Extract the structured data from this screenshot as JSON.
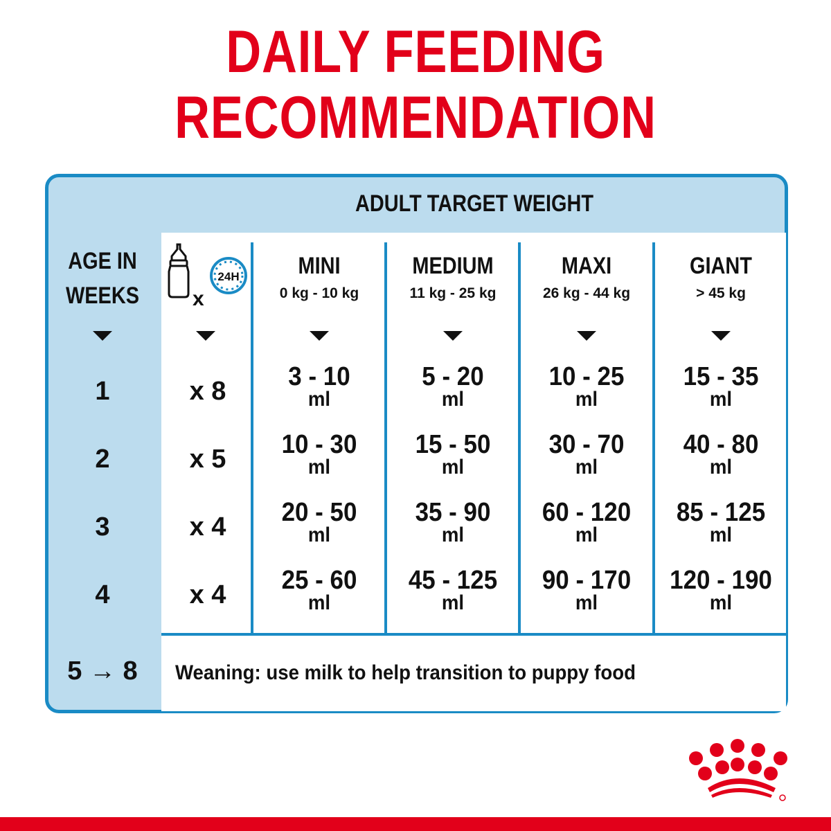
{
  "title": {
    "line1": "DAILY FEEDING",
    "line2": "RECOMMENDATION"
  },
  "table": {
    "header": "ADULT TARGET WEIGHT",
    "age_header": "AGE IN WEEKS",
    "age_header_line1": "AGE IN",
    "age_header_line2": "WEEKS",
    "frequency_icon": "baby-bottle-x-24h-clock-icon",
    "frequency_x": "x",
    "clock_label": "24H",
    "columns": [
      {
        "name": "MINI",
        "range": "0 kg - 10 kg"
      },
      {
        "name": "MEDIUM",
        "range": "11 kg - 25 kg"
      },
      {
        "name": "MAXI",
        "range": "26 kg - 44 kg"
      },
      {
        "name": "GIANT",
        "range": "> 45 kg"
      }
    ],
    "unit": "ml",
    "rows": [
      {
        "age": "1",
        "times": "x 8",
        "values": [
          "3 - 10",
          "5 - 20",
          "10 - 25",
          "15 - 35"
        ]
      },
      {
        "age": "2",
        "times": "x 5",
        "values": [
          "10 - 30",
          "15 - 50",
          "30 - 70",
          "40 - 80"
        ]
      },
      {
        "age": "3",
        "times": "x 4",
        "values": [
          "20 - 50",
          "35 - 90",
          "60 - 120",
          "85 - 125"
        ]
      },
      {
        "age": "4",
        "times": "x 4",
        "values": [
          "25 - 60",
          "45 - 125",
          "90 - 170",
          "120 - 190"
        ]
      }
    ],
    "weaning": {
      "age": "5 → 8",
      "text": "Weaning: use milk to help transition to puppy food"
    }
  },
  "brand": {
    "logo": "royal-canin-crown-logo",
    "colors": {
      "red": "#e2001a",
      "blue": "#1a8bc5",
      "light_blue": "#bcdcee"
    }
  }
}
